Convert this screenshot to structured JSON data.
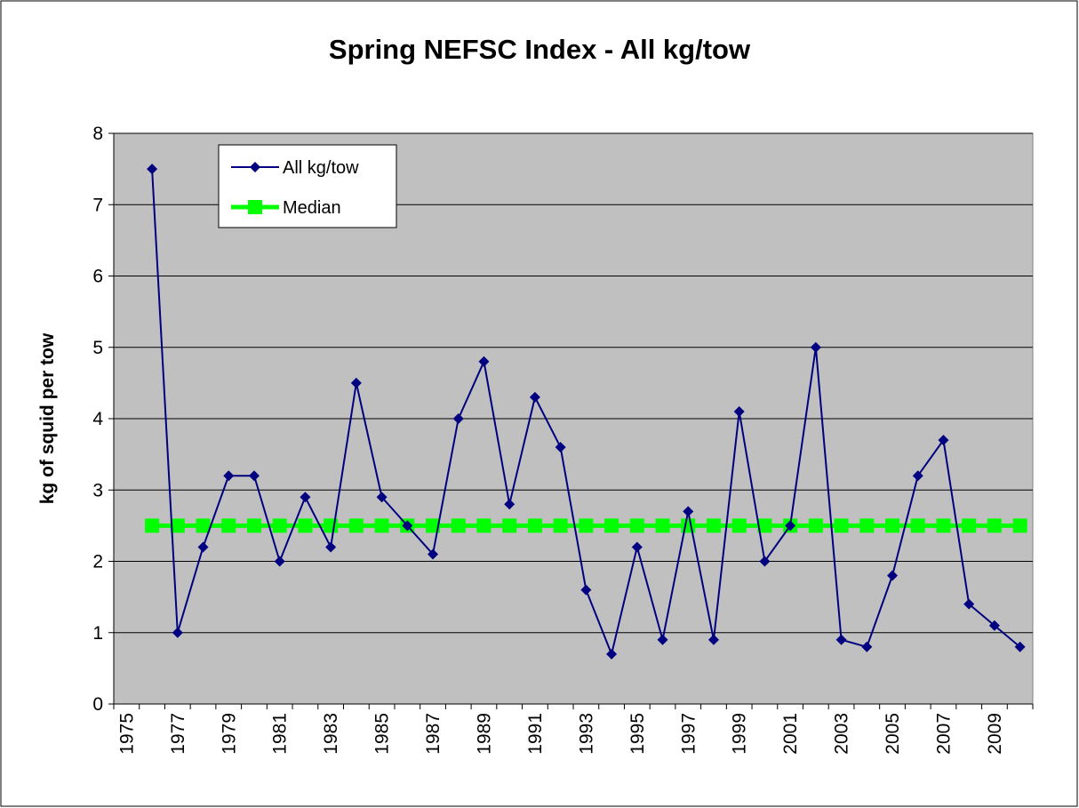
{
  "chart_data": {
    "type": "line",
    "title": "Spring NEFSC Index - All kg/tow",
    "y_label": "kg of squid per tow",
    "categories": [
      "1975",
      null,
      "1977",
      null,
      "1979",
      null,
      "1981",
      null,
      "1983",
      null,
      "1985",
      null,
      "1987",
      null,
      "1989",
      null,
      "1991",
      null,
      "1993",
      null,
      "1995",
      null,
      "1997",
      null,
      "1999",
      null,
      "2001",
      null,
      "2003",
      null,
      "2005",
      null,
      "2007",
      null,
      "2009",
      null
    ],
    "series": [
      {
        "name": "All kg/tow",
        "color": "#000080",
        "marker": "diamond",
        "values": [
          null,
          7.5,
          1.0,
          2.2,
          3.2,
          3.2,
          2.0,
          2.9,
          2.2,
          4.5,
          2.9,
          2.5,
          2.1,
          4.0,
          4.8,
          2.8,
          4.3,
          3.6,
          1.6,
          0.7,
          2.2,
          0.9,
          2.7,
          0.9,
          4.1,
          2.0,
          2.5,
          5.0,
          0.9,
          0.8,
          1.8,
          3.2,
          3.7,
          1.4,
          1.1,
          0.8
        ]
      },
      {
        "name": "Median",
        "color": "#00ff00",
        "marker": "square",
        "values": [
          null,
          2.5,
          2.5,
          2.5,
          2.5,
          2.5,
          2.5,
          2.5,
          2.5,
          2.5,
          2.5,
          2.5,
          2.5,
          2.5,
          2.5,
          2.5,
          2.5,
          2.5,
          2.5,
          2.5,
          2.5,
          2.5,
          2.5,
          2.5,
          2.5,
          2.5,
          2.5,
          2.5,
          2.5,
          2.5,
          2.5,
          2.5,
          2.5,
          2.5,
          2.5,
          2.5
        ]
      }
    ],
    "ylim": [
      0,
      8
    ],
    "yticks": [
      0,
      1,
      2,
      3,
      4,
      5,
      6,
      7,
      8
    ],
    "grid": true,
    "plot_background": "#c0c0c0",
    "legend": "upper left"
  }
}
